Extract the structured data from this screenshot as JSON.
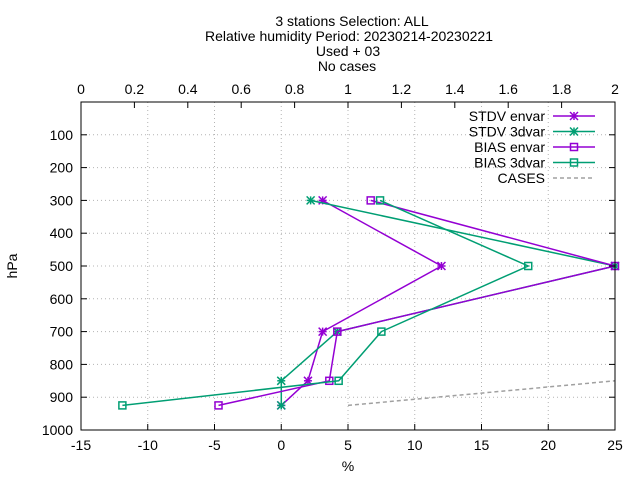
{
  "chart_data": {
    "type": "line",
    "title_lines": [
      "3 stations Selection: ALL",
      "Relative humidity  Period: 20230214-20230221",
      "Used  + 03",
      "No cases"
    ],
    "xlabel": "%",
    "ylabel": "hPa",
    "xlim": [
      -15,
      25
    ],
    "x2lim": [
      0,
      2
    ],
    "ylim": [
      1000,
      0
    ],
    "x_ticks": [
      -15,
      -10,
      -5,
      0,
      5,
      10,
      15,
      20,
      25
    ],
    "x2_ticks": [
      "0",
      "0.2",
      "0.4",
      "0.6",
      "0.8",
      "1",
      "1.2",
      "1.4",
      "1.6",
      "1.8",
      "2"
    ],
    "y_ticks": [
      100,
      200,
      300,
      400,
      500,
      600,
      700,
      800,
      900,
      1000
    ],
    "grid": true,
    "legend_position": "top-right",
    "series": [
      {
        "name": "STDV envar",
        "color": "#9400d3",
        "marker": "star",
        "points": [
          [
            3.1,
            300
          ],
          [
            12.0,
            500
          ],
          [
            3.1,
            700
          ],
          [
            2.0,
            850
          ],
          [
            0.0,
            925
          ]
        ]
      },
      {
        "name": "STDV 3dvar",
        "color": "#009e73",
        "marker": "star",
        "points": [
          [
            2.2,
            300
          ],
          [
            25.0,
            500
          ],
          [
            4.2,
            700
          ],
          [
            0.0,
            850
          ],
          [
            0.0,
            925
          ]
        ]
      },
      {
        "name": "BIAS envar",
        "color": "#9400d3",
        "marker": "square",
        "points": [
          [
            6.7,
            300
          ],
          [
            25.0,
            500
          ],
          [
            4.2,
            700
          ],
          [
            3.6,
            850
          ],
          [
            -4.7,
            925
          ]
        ]
      },
      {
        "name": "BIAS 3dvar",
        "color": "#009e73",
        "marker": "square",
        "points": [
          [
            7.4,
            300
          ],
          [
            18.5,
            500
          ],
          [
            7.5,
            700
          ],
          [
            4.3,
            850
          ],
          [
            -11.9,
            925
          ]
        ]
      },
      {
        "name": "CASES",
        "color": "#a0a0a0",
        "marker": "none",
        "dashed": true,
        "axis": "x2",
        "points": [
          [
            1.0,
            925
          ],
          [
            2.0,
            850
          ]
        ]
      }
    ]
  }
}
